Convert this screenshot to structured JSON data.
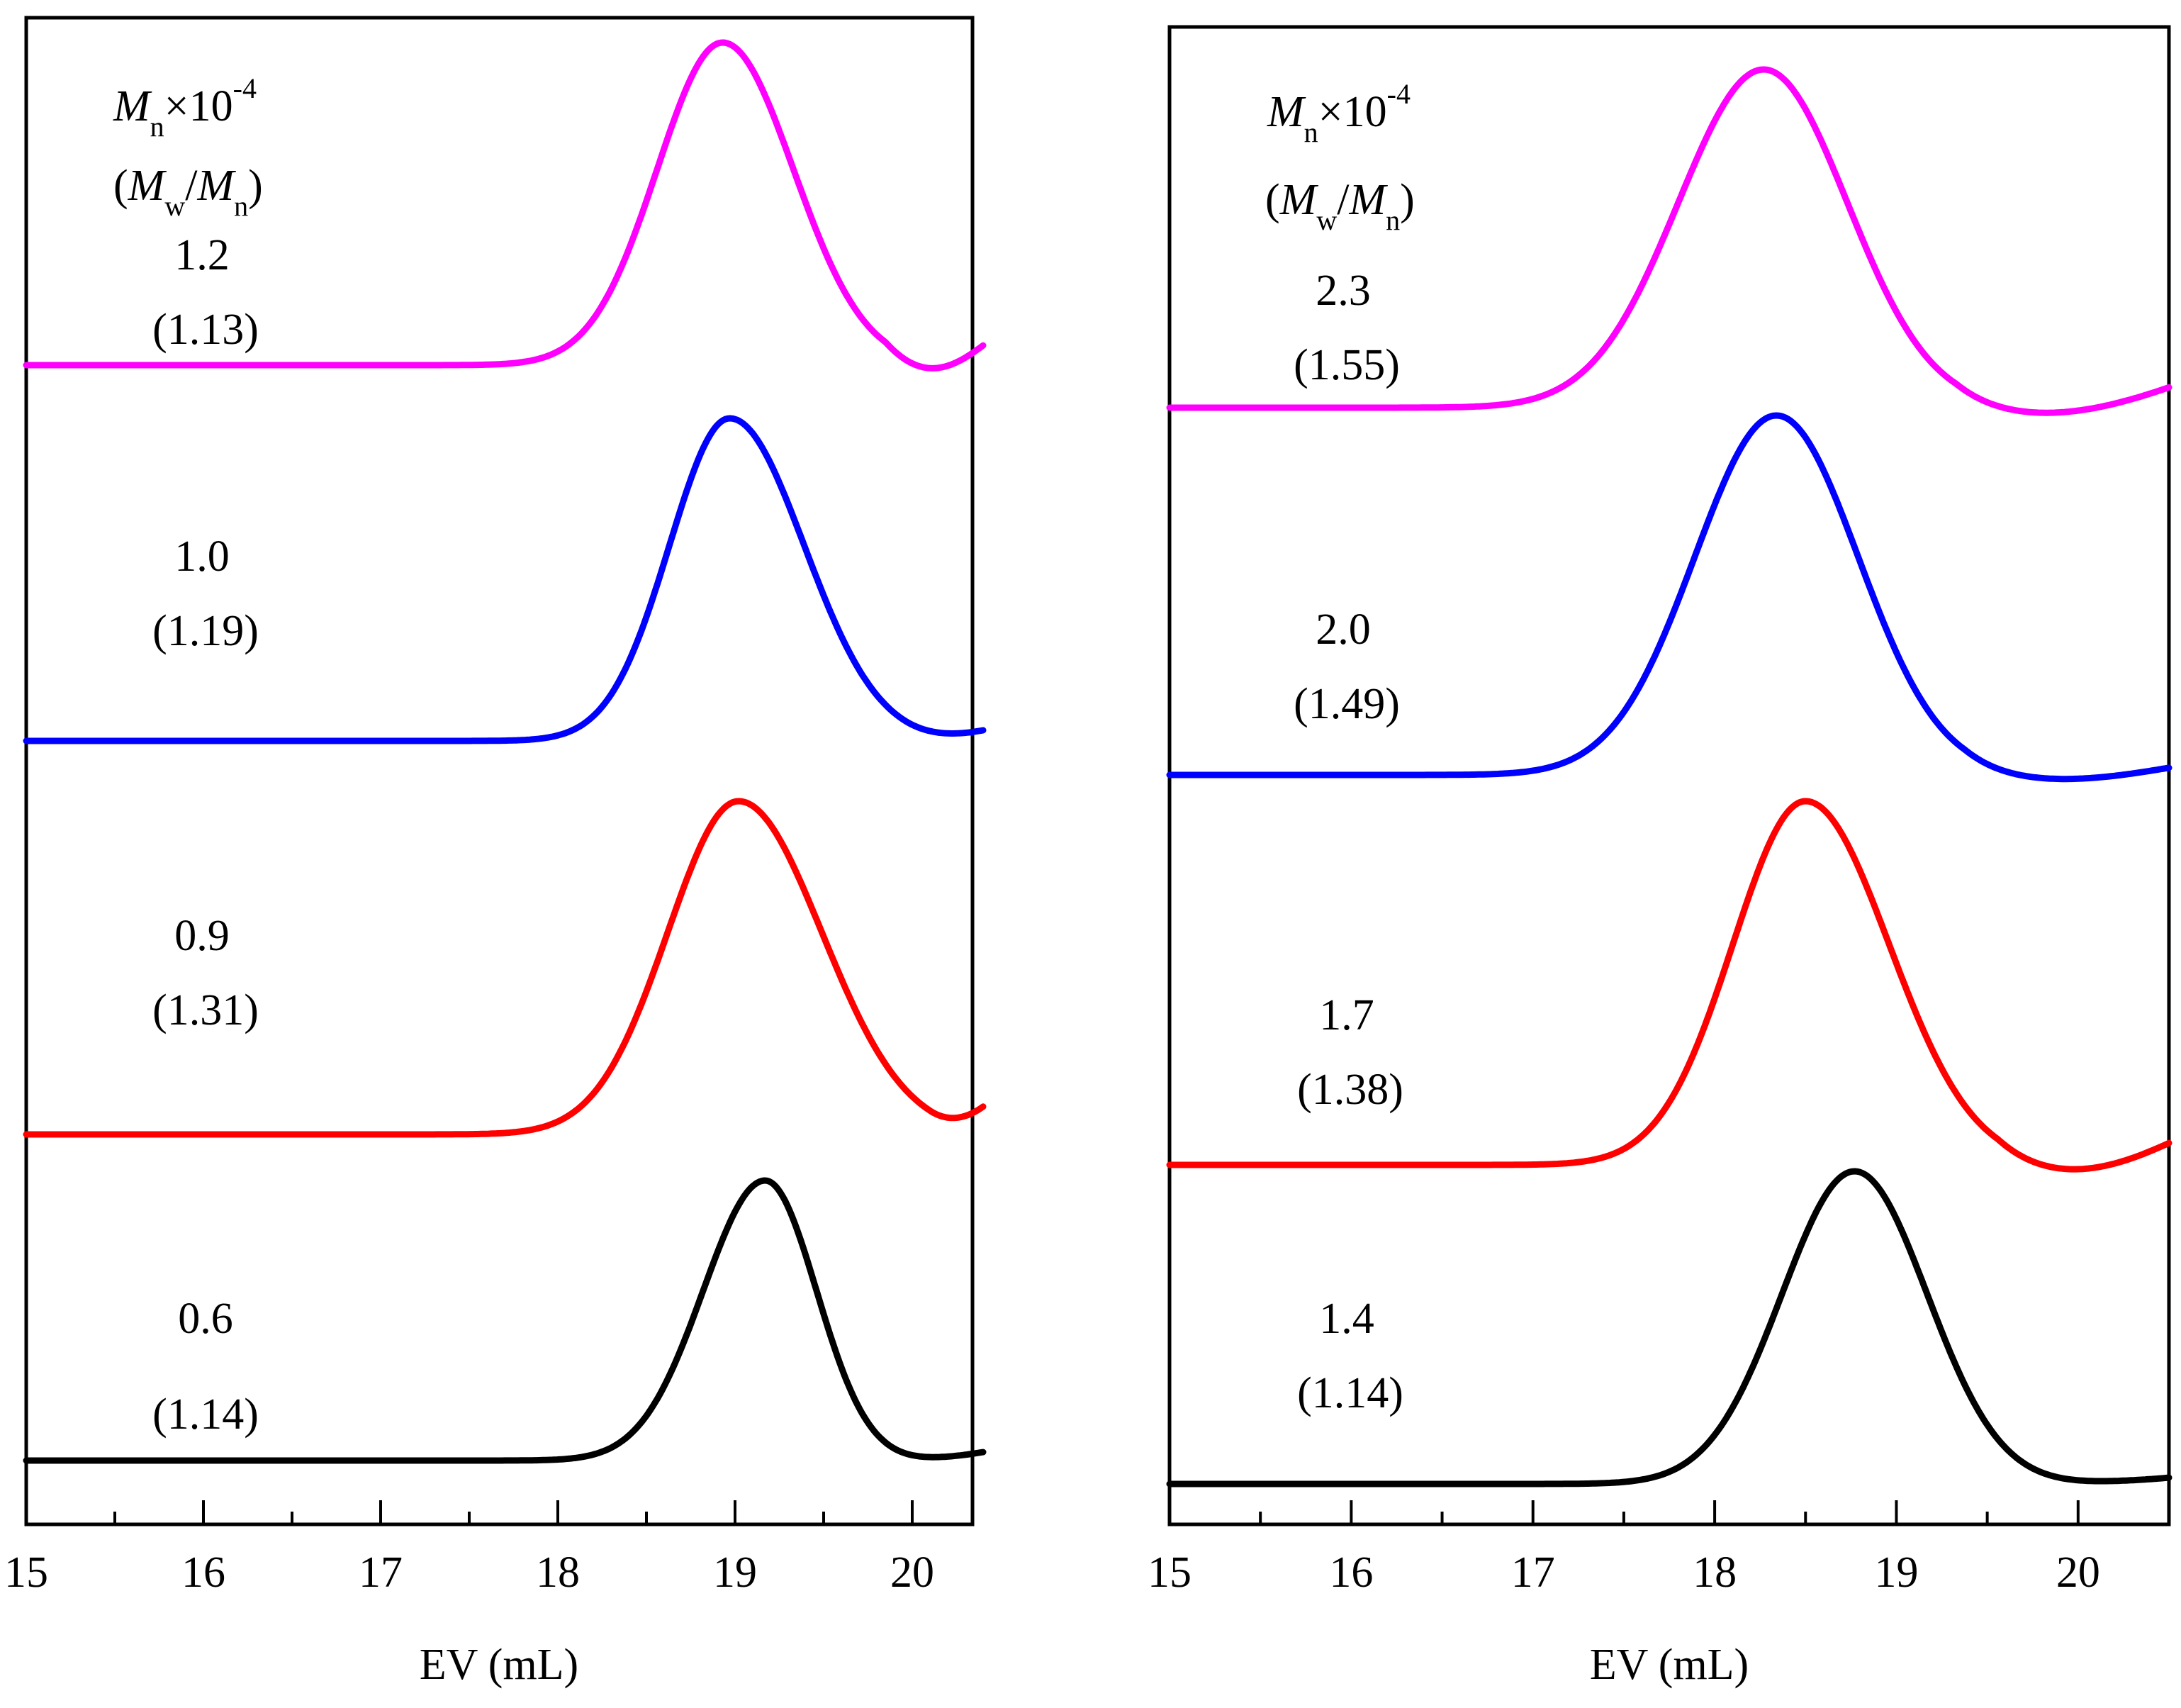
{
  "chart_data": [
    {
      "type": "line",
      "xlabel": "EV (mL)",
      "ylabel": "",
      "xlim": [
        15,
        20.4
      ],
      "xticks": [
        "15",
        "16",
        "17",
        "18",
        "19",
        "20"
      ],
      "legend_header": {
        "mn": "M",
        "mn_sub": "n",
        "times": "×10",
        "exp": "-4",
        "open": "(",
        "mw": "M",
        "mw_sub": "w",
        "slash": "/",
        "mn2": "M",
        "mn2_sub": "n",
        "close": ")"
      },
      "series": [
        {
          "name": "1.2 (1.13)",
          "mn": "1.2",
          "pdi": "(1.13)",
          "color": "#ff00ff",
          "peak_ev": 18.93,
          "sigma_left": 0.37,
          "sigma_right": 0.4,
          "tail_dip": 0.06,
          "tail_end": 0.06
        },
        {
          "name": "1.0 (1.19)",
          "mn": "1.0",
          "pdi": "(1.19)",
          "color": "#0000ff",
          "peak_ev": 18.97,
          "sigma_left": 0.34,
          "sigma_right": 0.42,
          "tail_dip": 0.0,
          "tail_end": 0.03
        },
        {
          "name": "0.9 (1.31)",
          "mn": "0.9",
          "pdi": "(1.31)",
          "color": "#ff0000",
          "peak_ev": 19.02,
          "sigma_left": 0.4,
          "sigma_right": 0.47,
          "tail_dip": 0.0,
          "tail_end": 0.07
        },
        {
          "name": "0.6 (1.14)",
          "mn": "0.6",
          "pdi": "(1.14)",
          "color": "#000000",
          "peak_ev": 19.17,
          "sigma_left": 0.35,
          "sigma_right": 0.29,
          "tail_dip": 0.0,
          "tail_end": 0.03
        }
      ]
    },
    {
      "type": "line",
      "xlabel": "EV (mL)",
      "ylabel": "",
      "xlim": [
        15,
        20.5
      ],
      "xticks": [
        "15",
        "16",
        "17",
        "18",
        "19",
        "20"
      ],
      "legend_header": {
        "mn": "M",
        "mn_sub": "n",
        "times": "×10",
        "exp": "-4",
        "open": "(",
        "mw": "M",
        "mw_sub": "w",
        "slash": "/",
        "mn2": "M",
        "mn2_sub": "n",
        "close": ")"
      },
      "series": [
        {
          "name": "2.3 (1.55)",
          "mn": "2.3",
          "pdi": "(1.55)",
          "color": "#ff00ff",
          "peak_ev": 18.27,
          "sigma_left": 0.47,
          "sigma_right": 0.46,
          "tail_dip": 0.05,
          "tail_end": 0.06
        },
        {
          "name": "2.0 (1.49)",
          "mn": "2.0",
          "pdi": "(1.49)",
          "color": "#0000ff",
          "peak_ev": 18.34,
          "sigma_left": 0.45,
          "sigma_right": 0.45,
          "tail_dip": 0.03,
          "tail_end": 0.02
        },
        {
          "name": "1.7 (1.38)",
          "mn": "1.7",
          "pdi": "(1.38)",
          "color": "#ff0000",
          "peak_ev": 18.5,
          "sigma_left": 0.4,
          "sigma_right": 0.46,
          "tail_dip": 0.05,
          "tail_end": 0.06
        },
        {
          "name": "1.4 (1.14)",
          "mn": "1.4",
          "pdi": "(1.14)",
          "color": "#000000",
          "peak_ev": 18.77,
          "sigma_left": 0.4,
          "sigma_right": 0.4,
          "tail_dip": 0.0,
          "tail_end": 0.02
        }
      ]
    }
  ]
}
